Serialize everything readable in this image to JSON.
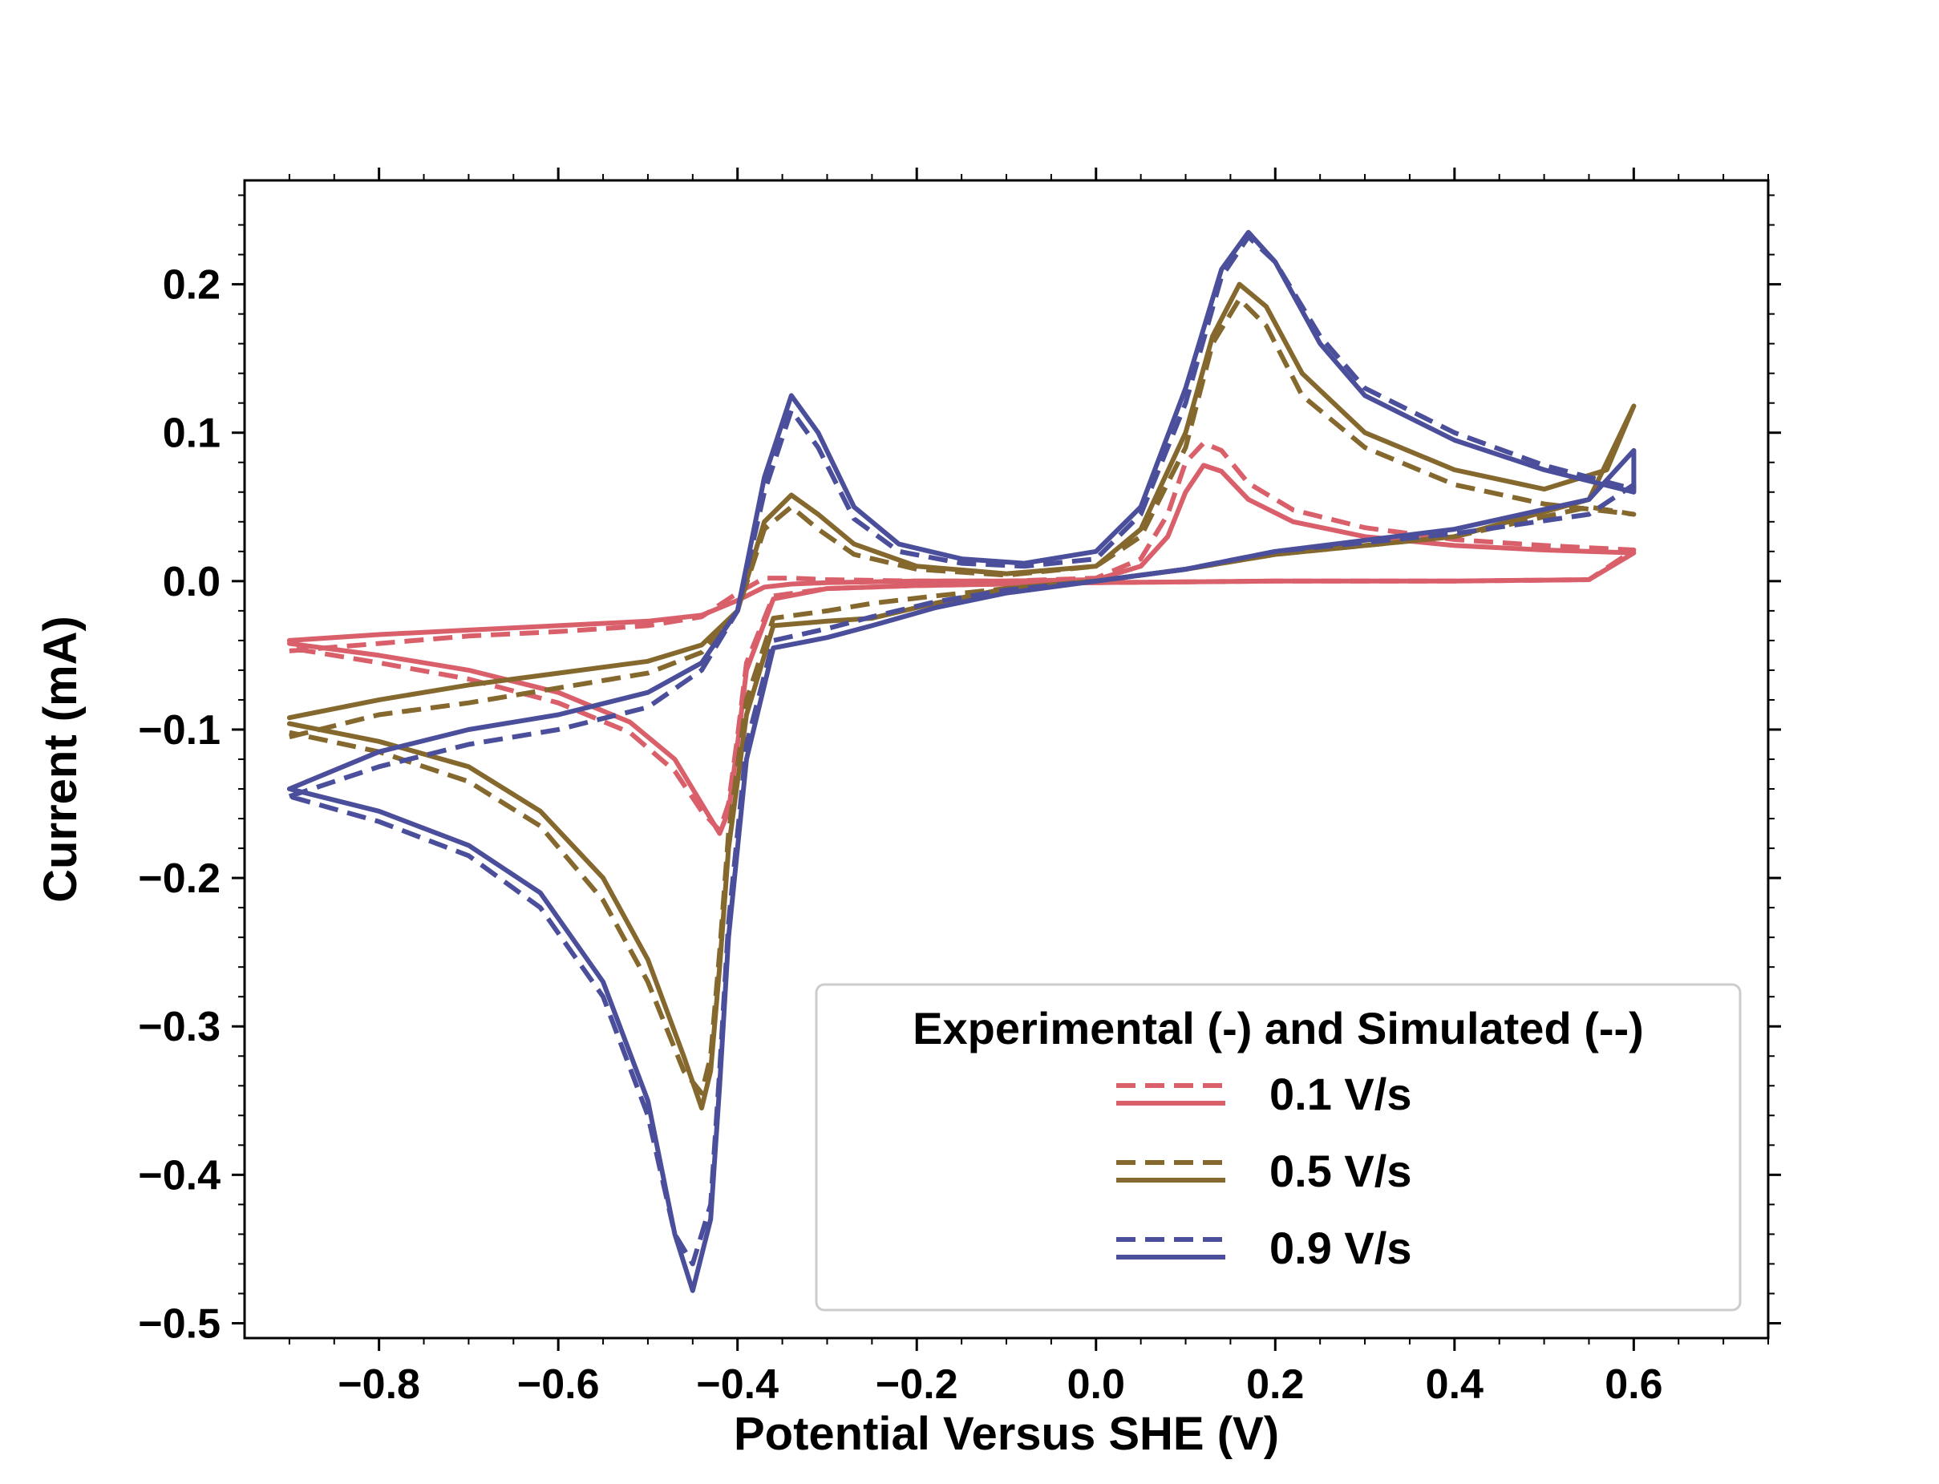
{
  "chart_data": {
    "type": "line",
    "title": "",
    "xlabel": "Potential Versus SHE (V)",
    "ylabel": "Current (mA)",
    "xlim": [
      -0.95,
      0.75
    ],
    "ylim": [
      -0.51,
      0.27
    ],
    "x_ticks": [
      -0.8,
      -0.6,
      -0.4,
      -0.2,
      0.0,
      0.2,
      0.4,
      0.6
    ],
    "x_tick_labels": [
      "−0.8",
      "−0.6",
      "−0.4",
      "−0.2",
      "0.0",
      "0.2",
      "0.4",
      "0.6"
    ],
    "y_ticks": [
      -0.5,
      -0.4,
      -0.3,
      -0.2,
      -0.1,
      0.0,
      0.1,
      0.2
    ],
    "y_tick_labels": [
      "−0.5",
      "−0.4",
      "−0.3",
      "−0.2",
      "−0.1",
      "0.0",
      "0.1",
      "0.2"
    ],
    "grid": false,
    "legend": {
      "title": "Experimental (-) and Simulated (--)",
      "placement": "lower-right"
    },
    "series": [
      {
        "name": "0.1 V/s",
        "color": "#d95f6a",
        "experimental": [
          [
            -0.9,
            -0.04
          ],
          [
            -0.8,
            -0.036
          ],
          [
            -0.7,
            -0.033
          ],
          [
            -0.6,
            -0.03
          ],
          [
            -0.5,
            -0.027
          ],
          [
            -0.44,
            -0.023
          ],
          [
            -0.4,
            -0.013
          ],
          [
            -0.37,
            -0.004
          ],
          [
            -0.34,
            -0.002
          ],
          [
            -0.3,
            -0.001
          ],
          [
            -0.2,
            0.0
          ],
          [
            -0.1,
            0.0
          ],
          [
            0.0,
            0.001
          ],
          [
            0.05,
            0.01
          ],
          [
            0.08,
            0.03
          ],
          [
            0.1,
            0.06
          ],
          [
            0.12,
            0.078
          ],
          [
            0.14,
            0.074
          ],
          [
            0.17,
            0.055
          ],
          [
            0.22,
            0.04
          ],
          [
            0.3,
            0.03
          ],
          [
            0.4,
            0.024
          ],
          [
            0.5,
            0.021
          ],
          [
            0.6,
            0.019
          ],
          [
            0.55,
            0.001
          ],
          [
            0.4,
            0.0
          ],
          [
            0.2,
            0.0
          ],
          [
            0.0,
            -0.001
          ],
          [
            -0.1,
            -0.002
          ],
          [
            -0.2,
            -0.003
          ],
          [
            -0.3,
            -0.005
          ],
          [
            -0.36,
            -0.012
          ],
          [
            -0.39,
            -0.06
          ],
          [
            -0.4,
            -0.11
          ],
          [
            -0.41,
            -0.155
          ],
          [
            -0.42,
            -0.17
          ],
          [
            -0.44,
            -0.15
          ],
          [
            -0.47,
            -0.12
          ],
          [
            -0.52,
            -0.095
          ],
          [
            -0.6,
            -0.075
          ],
          [
            -0.7,
            -0.06
          ],
          [
            -0.8,
            -0.05
          ],
          [
            -0.9,
            -0.042
          ]
        ],
        "simulated": [
          [
            -0.9,
            -0.047
          ],
          [
            -0.8,
            -0.042
          ],
          [
            -0.7,
            -0.037
          ],
          [
            -0.6,
            -0.034
          ],
          [
            -0.5,
            -0.03
          ],
          [
            -0.44,
            -0.024
          ],
          [
            -0.4,
            -0.008
          ],
          [
            -0.37,
            0.002
          ],
          [
            -0.34,
            0.002
          ],
          [
            -0.3,
            0.001
          ],
          [
            -0.2,
            0.0
          ],
          [
            -0.1,
            0.0
          ],
          [
            0.0,
            0.002
          ],
          [
            0.05,
            0.015
          ],
          [
            0.08,
            0.045
          ],
          [
            0.1,
            0.08
          ],
          [
            0.12,
            0.093
          ],
          [
            0.14,
            0.088
          ],
          [
            0.17,
            0.066
          ],
          [
            0.22,
            0.048
          ],
          [
            0.3,
            0.036
          ],
          [
            0.4,
            0.028
          ],
          [
            0.5,
            0.024
          ],
          [
            0.6,
            0.021
          ],
          [
            0.55,
            0.001
          ],
          [
            0.4,
            0.0
          ],
          [
            0.2,
            0.0
          ],
          [
            0.0,
            -0.001
          ],
          [
            -0.1,
            -0.002
          ],
          [
            -0.2,
            -0.003
          ],
          [
            -0.3,
            -0.005
          ],
          [
            -0.36,
            -0.01
          ],
          [
            -0.39,
            -0.055
          ],
          [
            -0.4,
            -0.105
          ],
          [
            -0.41,
            -0.15
          ],
          [
            -0.42,
            -0.168
          ],
          [
            -0.44,
            -0.155
          ],
          [
            -0.47,
            -0.128
          ],
          [
            -0.52,
            -0.102
          ],
          [
            -0.6,
            -0.082
          ],
          [
            -0.7,
            -0.066
          ],
          [
            -0.8,
            -0.055
          ],
          [
            -0.9,
            -0.045
          ]
        ]
      },
      {
        "name": "0.5 V/s",
        "color": "#85682d",
        "experimental": [
          [
            -0.9,
            -0.092
          ],
          [
            -0.8,
            -0.08
          ],
          [
            -0.7,
            -0.07
          ],
          [
            -0.6,
            -0.062
          ],
          [
            -0.5,
            -0.054
          ],
          [
            -0.44,
            -0.043
          ],
          [
            -0.4,
            -0.02
          ],
          [
            -0.37,
            0.04
          ],
          [
            -0.34,
            0.058
          ],
          [
            -0.31,
            0.045
          ],
          [
            -0.27,
            0.025
          ],
          [
            -0.2,
            0.01
          ],
          [
            -0.1,
            0.005
          ],
          [
            0.0,
            0.01
          ],
          [
            0.05,
            0.035
          ],
          [
            0.1,
            0.1
          ],
          [
            0.13,
            0.165
          ],
          [
            0.16,
            0.2
          ],
          [
            0.19,
            0.185
          ],
          [
            0.23,
            0.14
          ],
          [
            0.3,
            0.1
          ],
          [
            0.4,
            0.075
          ],
          [
            0.5,
            0.062
          ],
          [
            0.57,
            0.075
          ],
          [
            0.6,
            0.118
          ],
          [
            0.55,
            0.055
          ],
          [
            0.4,
            0.03
          ],
          [
            0.2,
            0.018
          ],
          [
            0.1,
            0.008
          ],
          [
            0.0,
            0.0
          ],
          [
            -0.1,
            -0.005
          ],
          [
            -0.18,
            -0.015
          ],
          [
            -0.25,
            -0.025
          ],
          [
            -0.3,
            -0.027
          ],
          [
            -0.36,
            -0.03
          ],
          [
            -0.39,
            -0.09
          ],
          [
            -0.41,
            -0.18
          ],
          [
            -0.42,
            -0.26
          ],
          [
            -0.43,
            -0.33
          ],
          [
            -0.44,
            -0.355
          ],
          [
            -0.46,
            -0.32
          ],
          [
            -0.5,
            -0.255
          ],
          [
            -0.55,
            -0.2
          ],
          [
            -0.62,
            -0.155
          ],
          [
            -0.7,
            -0.125
          ],
          [
            -0.8,
            -0.108
          ],
          [
            -0.9,
            -0.096
          ]
        ],
        "simulated": [
          [
            -0.9,
            -0.105
          ],
          [
            -0.8,
            -0.09
          ],
          [
            -0.7,
            -0.082
          ],
          [
            -0.6,
            -0.072
          ],
          [
            -0.5,
            -0.062
          ],
          [
            -0.44,
            -0.048
          ],
          [
            -0.4,
            -0.02
          ],
          [
            -0.37,
            0.035
          ],
          [
            -0.34,
            0.05
          ],
          [
            -0.31,
            0.035
          ],
          [
            -0.27,
            0.018
          ],
          [
            -0.2,
            0.008
          ],
          [
            -0.1,
            0.004
          ],
          [
            0.0,
            0.01
          ],
          [
            0.05,
            0.03
          ],
          [
            0.1,
            0.09
          ],
          [
            0.13,
            0.16
          ],
          [
            0.16,
            0.19
          ],
          [
            0.19,
            0.172
          ],
          [
            0.23,
            0.125
          ],
          [
            0.3,
            0.09
          ],
          [
            0.4,
            0.065
          ],
          [
            0.5,
            0.052
          ],
          [
            0.6,
            0.045
          ],
          [
            0.55,
            0.05
          ],
          [
            0.4,
            0.03
          ],
          [
            0.2,
            0.018
          ],
          [
            0.1,
            0.008
          ],
          [
            0.0,
            0.0
          ],
          [
            -0.1,
            -0.005
          ],
          [
            -0.18,
            -0.01
          ],
          [
            -0.25,
            -0.015
          ],
          [
            -0.3,
            -0.02
          ],
          [
            -0.36,
            -0.025
          ],
          [
            -0.39,
            -0.08
          ],
          [
            -0.41,
            -0.17
          ],
          [
            -0.42,
            -0.25
          ],
          [
            -0.43,
            -0.32
          ],
          [
            -0.44,
            -0.345
          ],
          [
            -0.46,
            -0.33
          ],
          [
            -0.5,
            -0.27
          ],
          [
            -0.55,
            -0.215
          ],
          [
            -0.62,
            -0.165
          ],
          [
            -0.7,
            -0.135
          ],
          [
            -0.8,
            -0.115
          ],
          [
            -0.9,
            -0.102
          ]
        ]
      },
      {
        "name": "0.9 V/s",
        "color": "#4b4f9b",
        "experimental": [
          [
            -0.9,
            -0.14
          ],
          [
            -0.8,
            -0.115
          ],
          [
            -0.7,
            -0.1
          ],
          [
            -0.6,
            -0.09
          ],
          [
            -0.5,
            -0.075
          ],
          [
            -0.44,
            -0.055
          ],
          [
            -0.4,
            -0.02
          ],
          [
            -0.37,
            0.07
          ],
          [
            -0.34,
            0.125
          ],
          [
            -0.31,
            0.1
          ],
          [
            -0.27,
            0.05
          ],
          [
            -0.22,
            0.025
          ],
          [
            -0.15,
            0.015
          ],
          [
            -0.08,
            0.012
          ],
          [
            0.0,
            0.02
          ],
          [
            0.05,
            0.05
          ],
          [
            0.1,
            0.13
          ],
          [
            0.14,
            0.21
          ],
          [
            0.17,
            0.235
          ],
          [
            0.2,
            0.215
          ],
          [
            0.25,
            0.16
          ],
          [
            0.3,
            0.125
          ],
          [
            0.4,
            0.095
          ],
          [
            0.5,
            0.075
          ],
          [
            0.6,
            0.06
          ],
          [
            0.6,
            0.088
          ],
          [
            0.55,
            0.055
          ],
          [
            0.4,
            0.035
          ],
          [
            0.2,
            0.02
          ],
          [
            0.1,
            0.008
          ],
          [
            0.0,
            0.0
          ],
          [
            -0.1,
            -0.008
          ],
          [
            -0.18,
            -0.018
          ],
          [
            -0.25,
            -0.03
          ],
          [
            -0.3,
            -0.038
          ],
          [
            -0.36,
            -0.045
          ],
          [
            -0.39,
            -0.12
          ],
          [
            -0.41,
            -0.24
          ],
          [
            -0.42,
            -0.34
          ],
          [
            -0.43,
            -0.43
          ],
          [
            -0.45,
            -0.478
          ],
          [
            -0.47,
            -0.44
          ],
          [
            -0.5,
            -0.35
          ],
          [
            -0.55,
            -0.27
          ],
          [
            -0.62,
            -0.21
          ],
          [
            -0.7,
            -0.178
          ],
          [
            -0.8,
            -0.155
          ],
          [
            -0.9,
            -0.14
          ]
        ],
        "simulated": [
          [
            -0.9,
            -0.145
          ],
          [
            -0.8,
            -0.125
          ],
          [
            -0.7,
            -0.11
          ],
          [
            -0.6,
            -0.1
          ],
          [
            -0.5,
            -0.085
          ],
          [
            -0.44,
            -0.06
          ],
          [
            -0.4,
            -0.02
          ],
          [
            -0.37,
            0.06
          ],
          [
            -0.34,
            0.115
          ],
          [
            -0.31,
            0.09
          ],
          [
            -0.27,
            0.042
          ],
          [
            -0.22,
            0.02
          ],
          [
            -0.15,
            0.012
          ],
          [
            -0.08,
            0.01
          ],
          [
            0.0,
            0.015
          ],
          [
            0.05,
            0.045
          ],
          [
            0.1,
            0.12
          ],
          [
            0.14,
            0.205
          ],
          [
            0.17,
            0.232
          ],
          [
            0.2,
            0.215
          ],
          [
            0.25,
            0.165
          ],
          [
            0.3,
            0.13
          ],
          [
            0.4,
            0.1
          ],
          [
            0.5,
            0.078
          ],
          [
            0.6,
            0.062
          ],
          [
            0.6,
            0.065
          ],
          [
            0.55,
            0.045
          ],
          [
            0.4,
            0.032
          ],
          [
            0.2,
            0.02
          ],
          [
            0.1,
            0.008
          ],
          [
            0.0,
            0.0
          ],
          [
            -0.1,
            -0.006
          ],
          [
            -0.18,
            -0.014
          ],
          [
            -0.25,
            -0.024
          ],
          [
            -0.3,
            -0.032
          ],
          [
            -0.36,
            -0.04
          ],
          [
            -0.39,
            -0.11
          ],
          [
            -0.41,
            -0.23
          ],
          [
            -0.42,
            -0.33
          ],
          [
            -0.43,
            -0.42
          ],
          [
            -0.45,
            -0.46
          ],
          [
            -0.47,
            -0.44
          ],
          [
            -0.5,
            -0.36
          ],
          [
            -0.55,
            -0.28
          ],
          [
            -0.62,
            -0.22
          ],
          [
            -0.7,
            -0.185
          ],
          [
            -0.8,
            -0.162
          ],
          [
            -0.9,
            -0.145
          ]
        ]
      }
    ]
  }
}
